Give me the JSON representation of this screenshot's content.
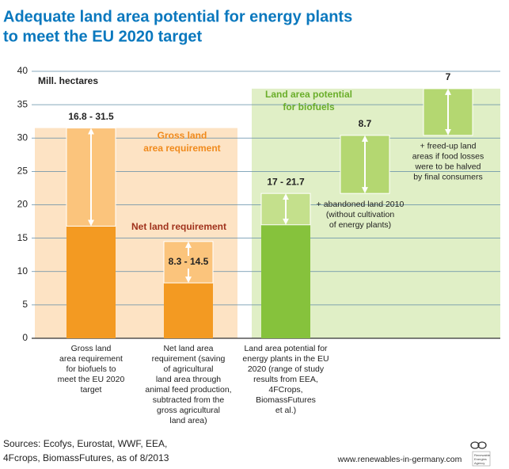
{
  "chart_data": {
    "type": "range-bar",
    "title": [
      "Adequate land area potential for energy plants",
      "to meet the EU 2020 target"
    ],
    "y_label": "Mill. hectares",
    "ylim": [
      0,
      40
    ],
    "yticks": [
      0,
      5,
      10,
      15,
      20,
      25,
      30,
      35,
      40
    ],
    "grid": true,
    "categories": [
      [
        "Gross land",
        "area requirement",
        "for biofuels to",
        "meet the EU 2020",
        "target"
      ],
      [
        "Net land area",
        "requirement (saving",
        "of agricultural",
        "land area through",
        "animal feed production,",
        "subtracted from the",
        "gross agricultural",
        "land area)"
      ],
      [
        "Land area potential for",
        "energy plants in the EU",
        "2020 (range of study",
        "results from EEA,",
        "4FCrops,",
        "BiomassFutures",
        "et al.)"
      ]
    ],
    "bars": [
      {
        "low": 16.8,
        "high": 31.5,
        "label": "16.8 - 31.5",
        "color": "#f39a22",
        "range_color": "#fbc47c"
      },
      {
        "low": 8.3,
        "high": 14.5,
        "label": "8.3 - 14.5",
        "color": "#f39a22",
        "range_color": "#fbc47c"
      },
      {
        "low": 17,
        "high": 21.7,
        "label": "17 - 21.7",
        "color": "#86c23c",
        "range_color": "#c4e08c"
      }
    ],
    "additions": [
      {
        "value": 8.7,
        "label": "8.7",
        "color": "#b4d771",
        "note": [
          "+ abandoned land 2010",
          "(without cultivation",
          "of energy plants)"
        ]
      },
      {
        "value": 7,
        "label": "7",
        "color": "#b4d771",
        "note": [
          "+ freed-up land",
          "areas if food losses",
          "were to be halved",
          "by final consumers"
        ]
      }
    ],
    "annotations": {
      "gross": [
        "Gross land",
        "area requirement"
      ],
      "net": "Net land requirement",
      "potential": [
        "Land area potential",
        "for biofuels"
      ]
    },
    "sources": [
      "Sources: Ecofys, Eurostat, WWF, EEA,",
      "4Fcrops, BiomassFutures, as of 8/2013"
    ],
    "website": "www.renewables-in-germany.com",
    "logo": [
      "Renewable",
      "Energies",
      "Agency"
    ]
  }
}
